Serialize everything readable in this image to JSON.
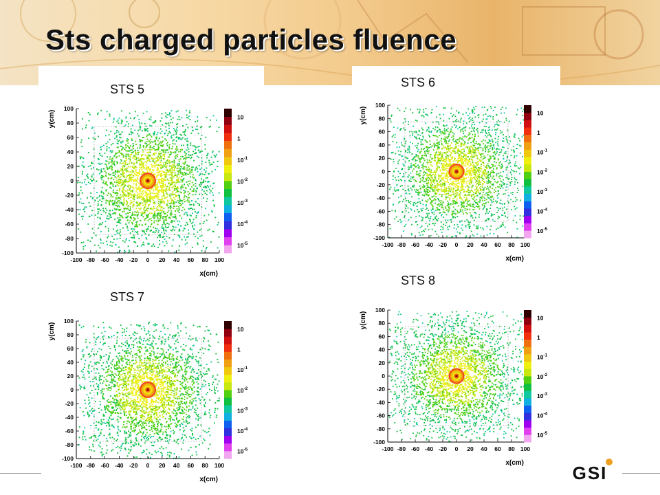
{
  "slide": {
    "title": "Sts charged particles fluence",
    "logo_text": "GSI",
    "colors": {
      "title": "#111111",
      "banner": "#f2c98a",
      "logo_dot": "#f0a020",
      "logo_text": "#111111"
    }
  },
  "chart_data": [
    {
      "type": "heatmap",
      "title": "STS 5",
      "xlabel": "x(cm)",
      "ylabel": "y(cm)",
      "xlim": [
        -100,
        100
      ],
      "ylim": [
        -100,
        100
      ],
      "xticks": [
        "-100",
        "-80",
        "-60",
        "-40",
        "-20",
        "0",
        "20",
        "40",
        "60",
        "80",
        "100"
      ],
      "yticks": [
        "100",
        "80",
        "60",
        "40",
        "20",
        "0",
        "-20",
        "-40",
        "-60",
        "-80",
        "-100"
      ],
      "colorbar": {
        "scale": "log",
        "ticks": [
          "10",
          "1",
          "10^-1",
          "10^-2",
          "10^-3",
          "10^-4",
          "10^-5"
        ]
      },
      "peak": {
        "x": 0,
        "y": 0
      },
      "grid": false
    },
    {
      "type": "heatmap",
      "title": "STS 6",
      "xlabel": "x(cm)",
      "ylabel": "y(cm)",
      "xlim": [
        -100,
        100
      ],
      "ylim": [
        -100,
        100
      ],
      "xticks": [
        "-100",
        "-80",
        "-60",
        "-40",
        "-20",
        "0",
        "20",
        "40",
        "60",
        "80",
        "100"
      ],
      "yticks": [
        "100",
        "80",
        "60",
        "40",
        "20",
        "0",
        "-20",
        "-40",
        "-60",
        "-80",
        "-100"
      ],
      "colorbar": {
        "scale": "log",
        "ticks": [
          "10",
          "1",
          "10^-1",
          "10^-2",
          "10^-3",
          "10^-4",
          "10^-5"
        ]
      },
      "peak": {
        "x": 0,
        "y": 0
      },
      "grid": false
    },
    {
      "type": "heatmap",
      "title": "STS 7",
      "xlabel": "x(cm)",
      "ylabel": "y(cm)",
      "xlim": [
        -100,
        100
      ],
      "ylim": [
        -100,
        100
      ],
      "xticks": [
        "-100",
        "-80",
        "-60",
        "-40",
        "-20",
        "0",
        "20",
        "40",
        "60",
        "80",
        "100"
      ],
      "yticks": [
        "100",
        "80",
        "60",
        "40",
        "20",
        "0",
        "-20",
        "-40",
        "-60",
        "-80",
        "-100"
      ],
      "colorbar": {
        "scale": "log",
        "ticks": [
          "10",
          "1",
          "10^-1",
          "10^-2",
          "10^-3",
          "10^-4",
          "10^-5"
        ]
      },
      "peak": {
        "x": 0,
        "y": 0
      },
      "grid": false
    },
    {
      "type": "heatmap",
      "title": "STS 8",
      "xlabel": "x(cm)",
      "ylabel": "y(cm)",
      "xlim": [
        -100,
        100
      ],
      "ylim": [
        -100,
        100
      ],
      "xticks": [
        "-100",
        "-80",
        "-60",
        "-40",
        "-20",
        "0",
        "20",
        "40",
        "60",
        "80",
        "100"
      ],
      "yticks": [
        "100",
        "80",
        "60",
        "40",
        "20",
        "0",
        "-20",
        "-40",
        "-60",
        "-80",
        "-100"
      ],
      "colorbar": {
        "scale": "log",
        "ticks": [
          "10",
          "1",
          "10^-1",
          "10^-2",
          "10^-3",
          "10^-4",
          "10^-5"
        ]
      },
      "peak": {
        "x": 0,
        "y": 0
      },
      "grid": false
    }
  ],
  "colormap": [
    "#f2a6ef",
    "#e040f0",
    "#a000f0",
    "#3030e0",
    "#1060f0",
    "#10b0e0",
    "#10c8a0",
    "#10c040",
    "#50d010",
    "#c8e810",
    "#f0f010",
    "#f0c810",
    "#f0a010",
    "#f07010",
    "#f03010",
    "#d01010",
    "#900010",
    "#300000"
  ]
}
